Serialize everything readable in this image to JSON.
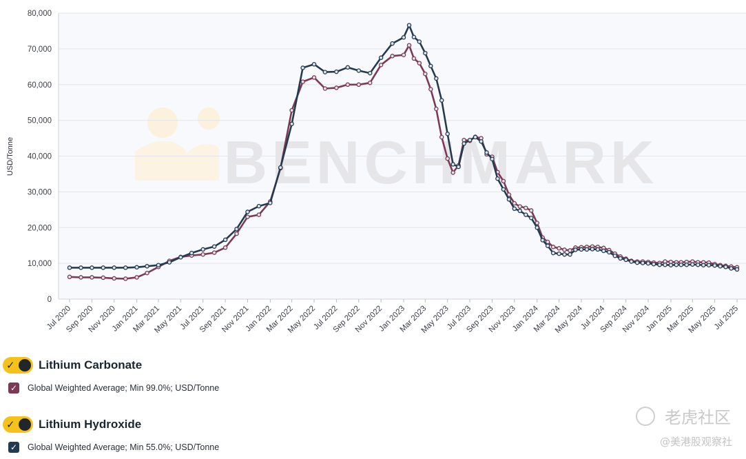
{
  "chart_data": {
    "type": "line",
    "ylabel": "USD/Tonne",
    "ylim": [
      0,
      80000
    ],
    "yticks": [
      0,
      10000,
      20000,
      30000,
      40000,
      50000,
      60000,
      70000,
      80000
    ],
    "ytick_labels": [
      "0",
      "10,000",
      "20,000",
      "30,000",
      "40,000",
      "50,000",
      "60,000",
      "70,000",
      "80,000"
    ],
    "grid": true,
    "xtick_labels": [
      "Jul 2020",
      "Sep 2020",
      "Nov 2020",
      "Jan 2021",
      "Mar 2021",
      "May 2021",
      "Jul 2021",
      "Sep 2021",
      "Nov 2021",
      "Jan 2022",
      "Mar 2022",
      "May 2022",
      "Jul 2022",
      "Sep 2022",
      "Nov 2022",
      "Jan 2023",
      "Mar 2023",
      "May 2023",
      "Jul 2023",
      "Sep 2023",
      "Nov 2023",
      "Jan 2024",
      "Mar 2024",
      "May 2024",
      "Jul 2024",
      "Sep 2024",
      "Nov 2024",
      "Jan 2025",
      "Mar 2025",
      "May 2025",
      "Jul 2025"
    ],
    "series": [
      {
        "name": "Lithium Carbonate",
        "color": "#7b3a55",
        "points": [
          [
            "2020-07-31",
            6200
          ],
          [
            "2020-08-31",
            6100
          ],
          [
            "2020-09-30",
            6100
          ],
          [
            "2020-10-31",
            6000
          ],
          [
            "2020-11-30",
            5800
          ],
          [
            "2020-12-31",
            5700
          ],
          [
            "2021-01-31",
            6100
          ],
          [
            "2021-02-28",
            7300
          ],
          [
            "2021-03-31",
            9000
          ],
          [
            "2021-04-30",
            10700
          ],
          [
            "2021-05-31",
            11800
          ],
          [
            "2021-06-30",
            12200
          ],
          [
            "2021-07-31",
            12500
          ],
          [
            "2021-08-31",
            13000
          ],
          [
            "2021-09-30",
            14400
          ],
          [
            "2021-10-31",
            18300
          ],
          [
            "2021-11-30",
            23000
          ],
          [
            "2021-12-31",
            23600
          ],
          [
            "2022-01-31",
            27300
          ],
          [
            "2022-02-28",
            36600
          ],
          [
            "2022-03-31",
            52800
          ],
          [
            "2022-04-30",
            60800
          ],
          [
            "2022-05-31",
            62000
          ],
          [
            "2022-06-30",
            58900
          ],
          [
            "2022-07-31",
            59100
          ],
          [
            "2022-08-31",
            60000
          ],
          [
            "2022-09-30",
            60000
          ],
          [
            "2022-10-31",
            60500
          ],
          [
            "2022-11-30",
            65500
          ],
          [
            "2022-12-31",
            68000
          ],
          [
            "2023-01-31",
            68300
          ],
          [
            "2023-02-15",
            71000
          ],
          [
            "2023-02-28",
            67300
          ],
          [
            "2023-03-15",
            66000
          ],
          [
            "2023-03-31",
            63000
          ],
          [
            "2023-04-15",
            58700
          ],
          [
            "2023-04-30",
            53200
          ],
          [
            "2023-05-15",
            45300
          ],
          [
            "2023-05-31",
            39300
          ],
          [
            "2023-06-15",
            35400
          ],
          [
            "2023-06-30",
            37400
          ],
          [
            "2023-07-15",
            44500
          ],
          [
            "2023-07-31",
            44300
          ],
          [
            "2023-08-15",
            45400
          ],
          [
            "2023-08-31",
            45000
          ],
          [
            "2023-09-15",
            40500
          ],
          [
            "2023-09-30",
            39800
          ],
          [
            "2023-10-15",
            35500
          ],
          [
            "2023-10-31",
            33000
          ],
          [
            "2023-11-15",
            29200
          ],
          [
            "2023-11-30",
            26800
          ],
          [
            "2023-12-15",
            25900
          ],
          [
            "2023-12-31",
            25500
          ],
          [
            "2024-01-15",
            24800
          ],
          [
            "2024-01-31",
            21300
          ],
          [
            "2024-02-15",
            17200
          ],
          [
            "2024-02-29",
            16000
          ],
          [
            "2024-03-15",
            14600
          ],
          [
            "2024-03-31",
            14200
          ],
          [
            "2024-04-15",
            13800
          ],
          [
            "2024-04-30",
            13600
          ],
          [
            "2024-05-15",
            14400
          ],
          [
            "2024-05-31",
            14500
          ],
          [
            "2024-06-15",
            14600
          ],
          [
            "2024-06-30",
            14700
          ],
          [
            "2024-07-15",
            14600
          ],
          [
            "2024-07-31",
            14300
          ],
          [
            "2024-08-15",
            13700
          ],
          [
            "2024-08-31",
            12700
          ],
          [
            "2024-09-15",
            11900
          ],
          [
            "2024-09-30",
            11300
          ],
          [
            "2024-10-15",
            10700
          ],
          [
            "2024-10-31",
            10500
          ],
          [
            "2024-11-15",
            10500
          ],
          [
            "2024-11-30",
            10400
          ],
          [
            "2024-12-15",
            10200
          ],
          [
            "2024-12-31",
            10100
          ],
          [
            "2025-01-15",
            10500
          ],
          [
            "2025-01-31",
            10400
          ],
          [
            "2025-02-15",
            10300
          ],
          [
            "2025-02-28",
            10300
          ],
          [
            "2025-03-15",
            10400
          ],
          [
            "2025-03-31",
            10500
          ],
          [
            "2025-04-15",
            10300
          ],
          [
            "2025-04-30",
            10300
          ],
          [
            "2025-05-15",
            10200
          ],
          [
            "2025-05-31",
            9800
          ],
          [
            "2025-06-15",
            9500
          ],
          [
            "2025-06-30",
            9300
          ],
          [
            "2025-07-15",
            9100
          ],
          [
            "2025-07-31",
            8900
          ]
        ]
      },
      {
        "name": "Lithium Hydroxide",
        "color": "#243b4f",
        "points": [
          [
            "2020-07-31",
            8800
          ],
          [
            "2020-08-31",
            8800
          ],
          [
            "2020-09-30",
            8800
          ],
          [
            "2020-10-31",
            8800
          ],
          [
            "2020-11-30",
            8800
          ],
          [
            "2020-12-31",
            8800
          ],
          [
            "2021-01-31",
            8900
          ],
          [
            "2021-02-28",
            9200
          ],
          [
            "2021-03-31",
            9500
          ],
          [
            "2021-04-30",
            10300
          ],
          [
            "2021-05-31",
            11700
          ],
          [
            "2021-06-30",
            12900
          ],
          [
            "2021-07-31",
            13900
          ],
          [
            "2021-08-31",
            14700
          ],
          [
            "2021-09-30",
            16600
          ],
          [
            "2021-10-31",
            19600
          ],
          [
            "2021-11-30",
            24400
          ],
          [
            "2021-12-31",
            26000
          ],
          [
            "2022-01-31",
            26900
          ],
          [
            "2022-02-28",
            36800
          ],
          [
            "2022-03-31",
            49000
          ],
          [
            "2022-04-30",
            64700
          ],
          [
            "2022-05-31",
            65700
          ],
          [
            "2022-06-30",
            63500
          ],
          [
            "2022-07-31",
            63600
          ],
          [
            "2022-08-31",
            64800
          ],
          [
            "2022-09-30",
            63900
          ],
          [
            "2022-10-31",
            63200
          ],
          [
            "2022-11-30",
            67500
          ],
          [
            "2022-12-31",
            71500
          ],
          [
            "2023-01-31",
            73200
          ],
          [
            "2023-02-15",
            76600
          ],
          [
            "2023-02-28",
            73300
          ],
          [
            "2023-03-15",
            72000
          ],
          [
            "2023-03-31",
            68800
          ],
          [
            "2023-04-15",
            65200
          ],
          [
            "2023-04-30",
            61700
          ],
          [
            "2023-05-15",
            55600
          ],
          [
            "2023-05-31",
            46200
          ],
          [
            "2023-06-15",
            37700
          ],
          [
            "2023-06-30",
            37000
          ],
          [
            "2023-07-15",
            43500
          ],
          [
            "2023-07-31",
            44500
          ],
          [
            "2023-08-15",
            45300
          ],
          [
            "2023-08-31",
            44100
          ],
          [
            "2023-09-15",
            41000
          ],
          [
            "2023-09-30",
            39200
          ],
          [
            "2023-10-15",
            33700
          ],
          [
            "2023-10-31",
            30700
          ],
          [
            "2023-11-15",
            27900
          ],
          [
            "2023-11-30",
            25300
          ],
          [
            "2023-12-15",
            24700
          ],
          [
            "2023-12-31",
            23600
          ],
          [
            "2024-01-15",
            22700
          ],
          [
            "2024-01-31",
            20000
          ],
          [
            "2024-02-15",
            16500
          ],
          [
            "2024-02-29",
            14900
          ],
          [
            "2024-03-15",
            12900
          ],
          [
            "2024-03-31",
            12700
          ],
          [
            "2024-04-15",
            12500
          ],
          [
            "2024-04-30",
            12500
          ],
          [
            "2024-05-15",
            13800
          ],
          [
            "2024-05-31",
            13900
          ],
          [
            "2024-06-15",
            13900
          ],
          [
            "2024-06-30",
            14000
          ],
          [
            "2024-07-15",
            13900
          ],
          [
            "2024-07-31",
            13500
          ],
          [
            "2024-08-15",
            13100
          ],
          [
            "2024-08-31",
            12100
          ],
          [
            "2024-09-15",
            11400
          ],
          [
            "2024-09-30",
            11000
          ],
          [
            "2024-10-15",
            10500
          ],
          [
            "2024-10-31",
            10200
          ],
          [
            "2024-11-15",
            10100
          ],
          [
            "2024-11-30",
            10000
          ],
          [
            "2024-12-15",
            9800
          ],
          [
            "2024-12-31",
            9600
          ],
          [
            "2025-01-15",
            9600
          ],
          [
            "2025-01-31",
            9500
          ],
          [
            "2025-02-15",
            9600
          ],
          [
            "2025-02-28",
            9600
          ],
          [
            "2025-03-15",
            9600
          ],
          [
            "2025-03-31",
            9700
          ],
          [
            "2025-04-15",
            9600
          ],
          [
            "2025-04-30",
            9500
          ],
          [
            "2025-05-15",
            9500
          ],
          [
            "2025-05-31",
            9400
          ],
          [
            "2025-06-15",
            9200
          ],
          [
            "2025-06-30",
            9000
          ],
          [
            "2025-07-15",
            8600
          ],
          [
            "2025-07-31",
            8300
          ]
        ]
      }
    ]
  },
  "watermark": {
    "text": "BENCHMARK",
    "color": "#e6e6e9"
  },
  "legend": {
    "groups": [
      {
        "title": "Lithium Carbonate",
        "series_label": "Global Weighted Average; Min 99.0%; USD/Tonne",
        "checkbox_color": "#7b3a55",
        "toggle_color": "#f4c21b"
      },
      {
        "title": "Lithium Hydroxide",
        "series_label": "Global Weighted Average; Min 55.0%; USD/Tonne",
        "checkbox_color": "#243b4f",
        "toggle_color": "#f4c21b"
      }
    ]
  },
  "overlay_watermark": {
    "main": "老虎社区",
    "sub": "@美港股观察社"
  }
}
